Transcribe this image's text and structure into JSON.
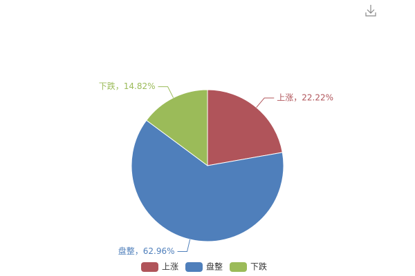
{
  "chart_data": {
    "type": "pie",
    "categories": [
      "上涨",
      "盘整",
      "下跌"
    ],
    "values": [
      22.22,
      62.96,
      14.82
    ],
    "value_labels": [
      "上涨，22.22%",
      "盘整，62.96%",
      "下跌，14.82%"
    ],
    "colors": [
      "#b0545a",
      "#4f7fbb",
      "#9bbb59"
    ],
    "legend": "bottom"
  }
}
